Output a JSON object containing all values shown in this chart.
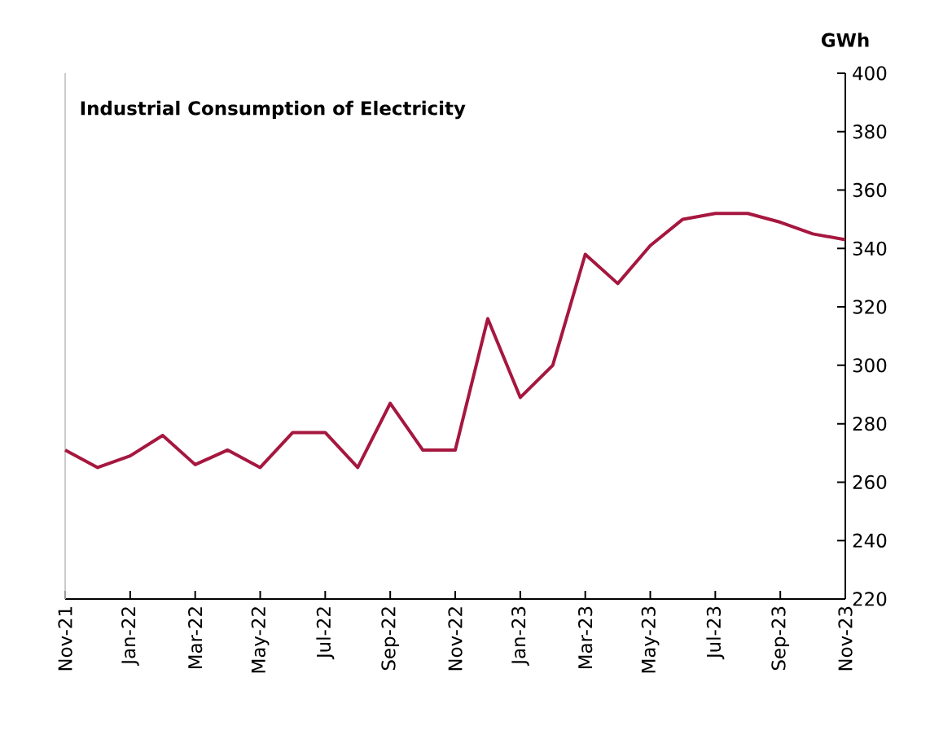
{
  "chart_data": {
    "type": "line",
    "title": "Industrial Consumption of Electricity",
    "ylabel": "GWh",
    "categories": [
      "Nov-21",
      null,
      "Jan-22",
      null,
      "Mar-22",
      null,
      "May-22",
      null,
      "Jul-22",
      null,
      "Sep-22",
      null,
      "Nov-22",
      null,
      "Jan-23",
      null,
      "Mar-23",
      null,
      "May-23",
      null,
      "Jul-23",
      null,
      "Sep-23",
      null,
      "Nov-23"
    ],
    "series": [
      {
        "color": "#a6173f",
        "values": [
          271,
          265,
          269,
          276,
          266,
          271,
          265,
          277,
          277,
          265,
          287,
          271,
          271,
          316,
          289,
          300,
          338,
          328,
          341,
          350,
          352,
          352,
          349,
          345,
          343
        ]
      }
    ],
    "ylim": [
      220,
      400
    ],
    "yticks": [
      220,
      240,
      260,
      280,
      300,
      320,
      340,
      360,
      380,
      400
    ],
    "grid": false,
    "marker": "none",
    "line_style": "solid"
  }
}
